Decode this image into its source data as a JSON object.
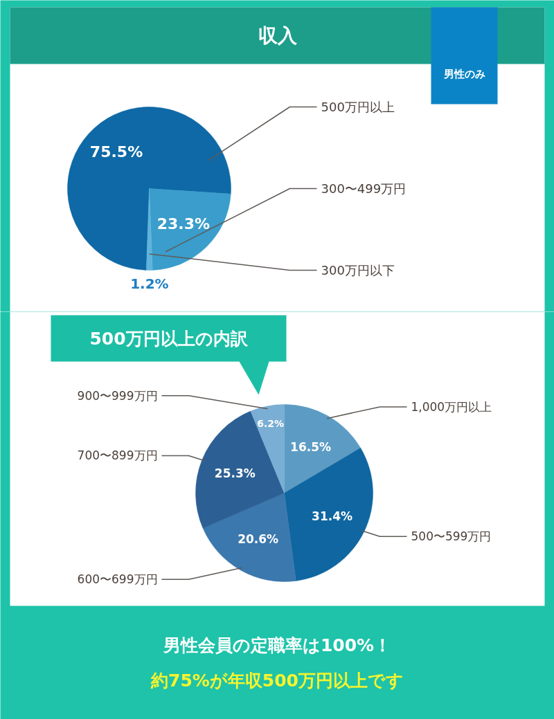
{
  "chart_data": [
    {
      "type": "pie",
      "title": "収入",
      "categories": [
        "500万円以上",
        "300〜499万円",
        "300万円以下"
      ],
      "values": [
        75.5,
        23.3,
        1.2
      ],
      "colors": [
        "#0e69a6",
        "#3a9dcb",
        "#5fb4dc"
      ],
      "value_labels": [
        "75.5%",
        "23.3%",
        "1.2%"
      ],
      "annotations": [
        "男性のみ"
      ]
    },
    {
      "type": "pie",
      "title": "500万円以上の内訳",
      "categories": [
        "1,000万円以上",
        "500〜599万円",
        "600〜699万円",
        "700〜899万円",
        "900〜999万円"
      ],
      "values": [
        16.5,
        31.4,
        20.6,
        25.3,
        6.2
      ],
      "colors": [
        "#5c9cc4",
        "#0f66a0",
        "#3b78ad",
        "#2c5f94",
        "#7aaed4"
      ],
      "value_labels": [
        "16.5%",
        "31.4%",
        "20.6%",
        "25.3%",
        "6.2%"
      ],
      "annotations": [
        "男性会員の定職率は100%！",
        "約75%が年収500万円以上です"
      ]
    }
  ]
}
